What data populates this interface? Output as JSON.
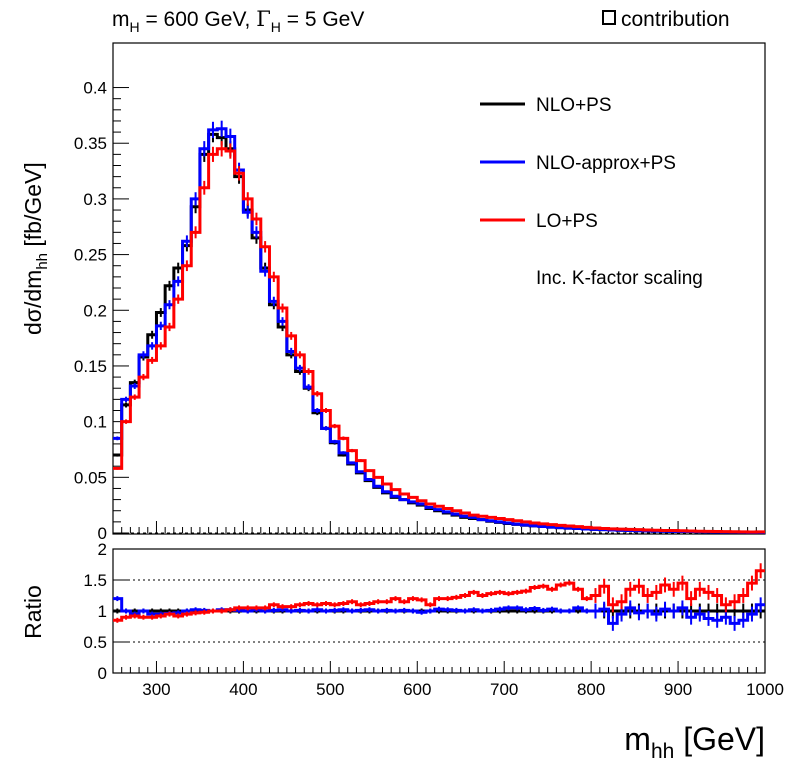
{
  "header": {
    "title_main": "m",
    "title_sub": "H",
    "title_mid": " = 600 GeV, ",
    "title_gamma": "Γ",
    "title_gamma_sub": "H",
    "title_end": " = 5 GeV",
    "contribution_label": "contribution"
  },
  "chart_data": [
    {
      "type": "line",
      "role": "main",
      "title": "m_H = 600 GeV, Γ_H = 5 GeV",
      "ylabel": "dσ/dm_hh [fb/GeV]",
      "ylabel_parts": {
        "a": "dσ/dm",
        "sub": "hh",
        "b": " [fb/GeV]"
      },
      "xlim": [
        250,
        1000
      ],
      "ylim": [
        0,
        0.44
      ],
      "yticks": [
        0,
        0.05,
        0.1,
        0.15,
        0.2,
        0.25,
        0.3,
        0.35,
        0.4
      ],
      "ytick_labels": [
        "0",
        "0.05",
        "0.1",
        "0.15",
        "0.2",
        "0.25",
        "0.3",
        "0.35",
        "0.4"
      ],
      "annotation": "Inc. K-factor scaling",
      "legend_position": "top-right",
      "series": [
        {
          "name": "NLO+PS",
          "color": "#000000",
          "x": [
            255,
            265,
            275,
            285,
            295,
            305,
            315,
            325,
            335,
            345,
            355,
            365,
            375,
            385,
            395,
            405,
            415,
            425,
            435,
            445,
            455,
            465,
            475,
            485,
            495,
            505,
            515,
            525,
            535,
            545,
            555,
            565,
            575,
            585,
            595,
            605,
            615,
            625,
            635,
            645,
            655,
            665,
            675,
            685,
            695,
            705,
            715,
            725,
            735,
            745,
            755,
            765,
            775,
            785,
            795,
            805,
            815,
            825,
            835,
            845,
            855,
            865,
            875,
            885,
            895,
            905,
            915,
            925,
            935,
            945,
            955,
            965,
            975,
            985,
            995
          ],
          "values": [
            0.07,
            0.115,
            0.135,
            0.158,
            0.178,
            0.198,
            0.222,
            0.238,
            0.258,
            0.293,
            0.34,
            0.358,
            0.355,
            0.345,
            0.32,
            0.29,
            0.265,
            0.238,
            0.205,
            0.185,
            0.16,
            0.145,
            0.13,
            0.108,
            0.094,
            0.081,
            0.07,
            0.062,
            0.054,
            0.047,
            0.041,
            0.036,
            0.032,
            0.03,
            0.027,
            0.025,
            0.022,
            0.02,
            0.018,
            0.016,
            0.014,
            0.013,
            0.012,
            0.0105,
            0.0095,
            0.0085,
            0.0078,
            0.007,
            0.0064,
            0.0058,
            0.0053,
            0.0048,
            0.0044,
            0.004,
            0.0036,
            0.0033,
            0.003,
            0.0027,
            0.0025,
            0.0023,
            0.0021,
            0.0019,
            0.0017,
            0.0016,
            0.0015,
            0.0014,
            0.0013,
            0.0012,
            0.0011,
            0.001,
            0.0009,
            0.0008,
            0.0007,
            0.0006,
            0.0006
          ]
        },
        {
          "name": "NLO-approx+PS",
          "color": "#0000ff",
          "x": [
            255,
            265,
            275,
            285,
            295,
            305,
            315,
            325,
            335,
            345,
            355,
            365,
            375,
            385,
            395,
            405,
            415,
            425,
            435,
            445,
            455,
            465,
            475,
            485,
            495,
            505,
            515,
            525,
            535,
            545,
            555,
            565,
            575,
            585,
            595,
            605,
            615,
            625,
            635,
            645,
            655,
            665,
            675,
            685,
            695,
            705,
            715,
            725,
            735,
            745,
            755,
            765,
            775,
            785,
            795,
            805,
            815,
            825,
            835,
            845,
            855,
            865,
            875,
            885,
            895,
            905,
            915,
            925,
            935,
            945,
            955,
            965,
            975,
            985,
            995
          ],
          "values": [
            0.085,
            0.12,
            0.132,
            0.16,
            0.168,
            0.186,
            0.205,
            0.226,
            0.262,
            0.3,
            0.345,
            0.362,
            0.363,
            0.356,
            0.326,
            0.288,
            0.27,
            0.235,
            0.208,
            0.19,
            0.163,
            0.148,
            0.131,
            0.11,
            0.094,
            0.082,
            0.072,
            0.063,
            0.055,
            0.048,
            0.042,
            0.037,
            0.033,
            0.03,
            0.028,
            0.026,
            0.023,
            0.021,
            0.019,
            0.017,
            0.015,
            0.014,
            0.012,
            0.011,
            0.01,
            0.009,
            0.008,
            0.0072,
            0.0065,
            0.0058,
            0.0053,
            0.0048,
            0.0044,
            0.004,
            0.0036,
            0.0032,
            0.003,
            0.0027,
            0.0025,
            0.0023,
            0.002,
            0.0019,
            0.0017,
            0.0016,
            0.0015,
            0.0014,
            0.0013,
            0.0011,
            0.001,
            0.0009,
            0.0008,
            0.0008,
            0.0007,
            0.0006,
            0.0006
          ]
        },
        {
          "name": "LO+PS",
          "color": "#ff0000",
          "x": [
            255,
            265,
            275,
            285,
            295,
            305,
            315,
            325,
            335,
            345,
            355,
            365,
            375,
            385,
            395,
            405,
            415,
            425,
            435,
            445,
            455,
            465,
            475,
            485,
            495,
            505,
            515,
            525,
            535,
            545,
            555,
            565,
            575,
            585,
            595,
            605,
            615,
            625,
            635,
            645,
            655,
            665,
            675,
            685,
            695,
            705,
            715,
            725,
            735,
            745,
            755,
            765,
            775,
            785,
            795,
            805,
            815,
            825,
            835,
            845,
            855,
            865,
            875,
            885,
            895,
            905,
            915,
            925,
            935,
            945,
            955,
            965,
            975,
            985,
            995
          ],
          "values": [
            0.058,
            0.1,
            0.122,
            0.14,
            0.155,
            0.168,
            0.185,
            0.21,
            0.24,
            0.27,
            0.31,
            0.34,
            0.345,
            0.343,
            0.323,
            0.3,
            0.282,
            0.257,
            0.23,
            0.202,
            0.177,
            0.16,
            0.145,
            0.125,
            0.11,
            0.096,
            0.085,
            0.074,
            0.065,
            0.056,
            0.05,
            0.044,
            0.039,
            0.035,
            0.032,
            0.029,
            0.026,
            0.024,
            0.022,
            0.02,
            0.018,
            0.016,
            0.015,
            0.014,
            0.013,
            0.012,
            0.011,
            0.01,
            0.009,
            0.0082,
            0.0075,
            0.0069,
            0.0063,
            0.0057,
            0.0051,
            0.0045,
            0.004,
            0.0037,
            0.0035,
            0.0032,
            0.003,
            0.0027,
            0.0025,
            0.0023,
            0.0022,
            0.002,
            0.0018,
            0.0016,
            0.0015,
            0.0014,
            0.0012,
            0.0011,
            0.001,
            0.0009,
            0.001
          ]
        }
      ]
    },
    {
      "type": "line",
      "role": "ratio",
      "ylabel": "Ratio",
      "xlabel": "m_hh [GeV]",
      "xlabel_parts": {
        "a": "m",
        "sub": "hh",
        "b": " [GeV]"
      },
      "xlim": [
        250,
        1000
      ],
      "ylim": [
        0,
        2
      ],
      "xticks": [
        300,
        400,
        500,
        600,
        700,
        800,
        900,
        1000
      ],
      "xtick_labels": [
        "300",
        "400",
        "500",
        "600",
        "700",
        "800",
        "900",
        "1000"
      ],
      "yticks": [
        0,
        0.5,
        1,
        1.5,
        2
      ],
      "ytick_labels": [
        "0",
        "0.5",
        "1",
        "1.5",
        "2"
      ],
      "reference_lines": [
        0.5,
        1.5
      ],
      "series": [
        {
          "name": "NLO+PS",
          "color": "#000000",
          "x": [
            255,
            265,
            275,
            285,
            295,
            305,
            315,
            325,
            335,
            345,
            355,
            365,
            375,
            385,
            395,
            405,
            415,
            425,
            435,
            445,
            455,
            465,
            475,
            485,
            495,
            505,
            515,
            525,
            535,
            545,
            555,
            565,
            575,
            585,
            595,
            605,
            615,
            625,
            635,
            645,
            655,
            665,
            675,
            685,
            695,
            705,
            715,
            725,
            735,
            745,
            755,
            765,
            775,
            785,
            795,
            805,
            815,
            825,
            835,
            845,
            855,
            865,
            875,
            885,
            895,
            905,
            915,
            925,
            935,
            945,
            955,
            965,
            975,
            985,
            995
          ],
          "values": [
            1,
            1,
            1,
            1,
            1,
            1,
            1,
            1,
            1,
            1,
            1,
            1,
            1,
            1,
            1,
            1,
            1,
            1,
            1,
            1,
            1,
            1,
            1,
            1,
            1,
            1,
            1,
            1,
            1,
            1,
            1,
            1,
            1,
            1,
            1,
            1,
            1,
            1,
            1,
            1,
            1,
            1,
            1,
            1,
            1,
            1,
            1,
            1,
            1,
            1,
            1,
            1,
            1,
            1,
            1,
            1,
            1,
            1,
            1,
            1,
            1,
            1,
            1,
            1,
            1,
            1,
            1,
            1,
            1,
            1,
            1,
            1,
            1,
            1,
            1
          ]
        },
        {
          "name": "NLO-approx+PS",
          "color": "#0000ff",
          "x": [
            255,
            265,
            275,
            285,
            295,
            305,
            315,
            325,
            335,
            345,
            355,
            365,
            375,
            385,
            395,
            405,
            415,
            425,
            435,
            445,
            455,
            465,
            475,
            485,
            495,
            505,
            515,
            525,
            535,
            545,
            555,
            565,
            575,
            585,
            595,
            605,
            615,
            625,
            635,
            645,
            655,
            665,
            675,
            685,
            695,
            705,
            715,
            725,
            735,
            745,
            755,
            765,
            775,
            785,
            795,
            805,
            815,
            825,
            835,
            845,
            855,
            865,
            875,
            885,
            895,
            905,
            915,
            925,
            935,
            945,
            955,
            965,
            975,
            985,
            995
          ],
          "values": [
            1.2,
            1.0,
            0.95,
            1.0,
            0.95,
            0.95,
            0.96,
            0.97,
            1.0,
            1.02,
            1.01,
            1.0,
            1.02,
            1.02,
            1.01,
            1.0,
            1.02,
            1.0,
            1.01,
            1.02,
            1.0,
            1.01,
            1.0,
            1.02,
            1.0,
            1.01,
            1.02,
            1.0,
            1.01,
            1.02,
            1.0,
            1.01,
            1.0,
            1.01,
            1.0,
            0.98,
            1.0,
            1.03,
            1.02,
            1.01,
            1.0,
            1.02,
            1.0,
            1.01,
            1.03,
            1.05,
            1.05,
            1.02,
            1.04,
            1.01,
            1.03,
            1.0,
            1.0,
            1.05,
            1.0,
            1.0,
            1.03,
            0.8,
            0.95,
            1.05,
            0.97,
            1.0,
            0.95,
            1.03,
            1.0,
            1.05,
            0.9,
            0.95,
            0.88,
            0.85,
            0.9,
            0.8,
            0.85,
            0.95,
            1.1
          ]
        },
        {
          "name": "LO+PS",
          "color": "#ff0000",
          "x": [
            255,
            265,
            275,
            285,
            295,
            305,
            315,
            325,
            335,
            345,
            355,
            365,
            375,
            385,
            395,
            405,
            415,
            425,
            435,
            445,
            455,
            465,
            475,
            485,
            495,
            505,
            515,
            525,
            535,
            545,
            555,
            565,
            575,
            585,
            595,
            605,
            615,
            625,
            635,
            645,
            655,
            665,
            675,
            685,
            695,
            705,
            715,
            725,
            735,
            745,
            755,
            765,
            775,
            785,
            795,
            805,
            815,
            825,
            835,
            845,
            855,
            865,
            875,
            885,
            895,
            905,
            915,
            925,
            935,
            945,
            955,
            965,
            975,
            985,
            995
          ],
          "values": [
            0.85,
            0.9,
            0.92,
            0.9,
            0.9,
            0.92,
            0.95,
            0.92,
            0.95,
            0.97,
            0.98,
            1.0,
            1.0,
            1.02,
            1.05,
            1.05,
            1.05,
            1.05,
            1.1,
            1.07,
            1.07,
            1.1,
            1.12,
            1.1,
            1.12,
            1.1,
            1.12,
            1.15,
            1.1,
            1.12,
            1.15,
            1.15,
            1.2,
            1.15,
            1.2,
            1.18,
            1.1,
            1.2,
            1.2,
            1.22,
            1.25,
            1.3,
            1.25,
            1.28,
            1.3,
            1.28,
            1.3,
            1.32,
            1.38,
            1.4,
            1.35,
            1.42,
            1.45,
            1.35,
            1.2,
            1.25,
            1.4,
            1.1,
            1.15,
            1.35,
            1.4,
            1.25,
            1.3,
            1.42,
            1.35,
            1.45,
            1.2,
            1.35,
            1.3,
            1.25,
            1.1,
            1.15,
            1.25,
            1.45,
            1.65
          ]
        }
      ]
    }
  ]
}
